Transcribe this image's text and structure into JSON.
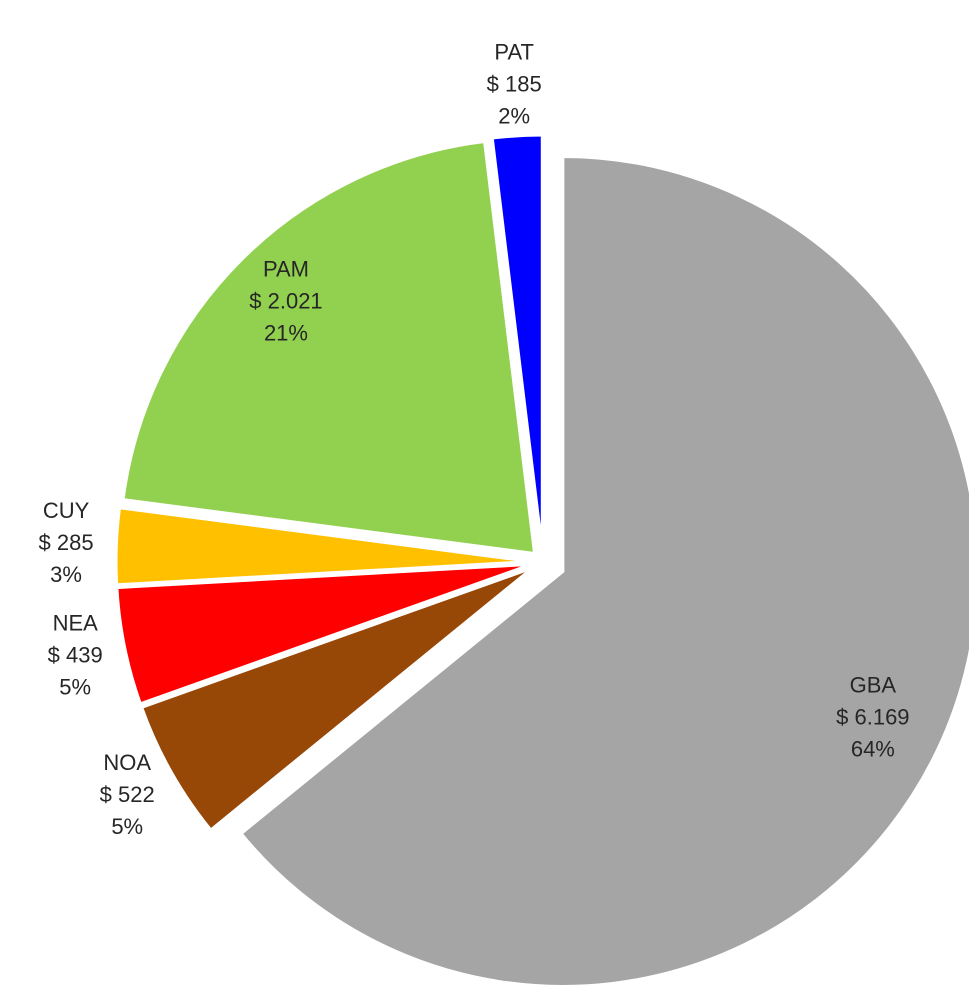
{
  "chart_data": {
    "type": "pie",
    "categories": [
      "GBA",
      "NOA",
      "NEA",
      "CUY",
      "PAM",
      "PAT"
    ],
    "values": [
      6169,
      522,
      439,
      285,
      2021,
      185
    ],
    "value_labels": [
      "$ 6.169",
      "$ 522",
      "$ 439",
      "$ 285",
      "$ 2.021",
      "$ 185"
    ],
    "percentage_labels": [
      "64%",
      "5%",
      "5%",
      "3%",
      "21%",
      "2%"
    ],
    "colors": [
      "#a5a5a5",
      "#974706",
      "#ff0000",
      "#ffc000",
      "#92d050",
      "#0000ff"
    ]
  }
}
